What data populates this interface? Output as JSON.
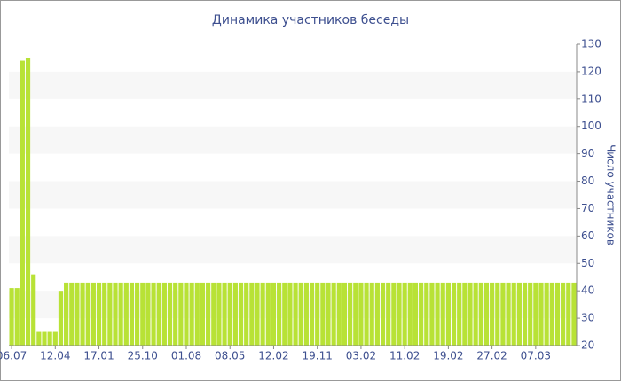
{
  "chart_data": {
    "type": "bar",
    "title": "Динамика участников беседы",
    "y_axis_label": "Число участников",
    "categories": [
      "06.07",
      null,
      null,
      null,
      null,
      null,
      null,
      null,
      "12.04",
      null,
      null,
      null,
      null,
      null,
      null,
      null,
      "17.01",
      null,
      null,
      null,
      null,
      null,
      null,
      null,
      "25.10",
      null,
      null,
      null,
      null,
      null,
      null,
      null,
      "01.08",
      null,
      null,
      null,
      null,
      null,
      null,
      null,
      "08.05",
      null,
      null,
      null,
      null,
      null,
      null,
      null,
      "12.02",
      null,
      null,
      null,
      null,
      null,
      null,
      null,
      "19.11",
      null,
      null,
      null,
      null,
      null,
      null,
      null,
      "03.02",
      null,
      null,
      null,
      null,
      null,
      null,
      null,
      "11.02",
      null,
      null,
      null,
      null,
      null,
      null,
      null,
      "19.02",
      null,
      null,
      null,
      null,
      null,
      null,
      null,
      "27.02",
      null,
      null,
      null,
      null,
      null,
      null,
      null,
      "07.03",
      null,
      null,
      null,
      null,
      null,
      null,
      null
    ],
    "values": [
      41,
      41,
      124,
      125,
      46,
      25,
      25,
      25,
      25,
      40,
      43,
      43,
      43,
      43,
      43,
      43,
      43,
      43,
      43,
      43,
      43,
      43,
      43,
      43,
      43,
      43,
      43,
      43,
      43,
      43,
      43,
      43,
      43,
      43,
      43,
      43,
      43,
      43,
      43,
      43,
      43,
      43,
      43,
      43,
      43,
      43,
      43,
      43,
      43,
      43,
      43,
      43,
      43,
      43,
      43,
      43,
      43,
      43,
      43,
      43,
      43,
      43,
      43,
      43,
      43,
      43,
      43,
      43,
      43,
      43,
      43,
      43,
      43,
      43,
      43,
      43,
      43,
      43,
      43,
      43,
      43,
      43,
      43,
      43,
      43,
      43,
      43,
      43,
      43,
      43,
      43,
      43,
      43,
      43,
      43,
      43,
      43,
      43,
      43,
      43,
      43,
      43,
      43,
      43
    ],
    "color": "#b8e236",
    "ylim": [
      20,
      130
    ],
    "yticks": [
      20,
      30,
      40,
      50,
      60,
      70,
      80,
      90,
      100,
      110,
      120,
      130
    ],
    "grid": "bands",
    "y_axis_side": "right"
  }
}
